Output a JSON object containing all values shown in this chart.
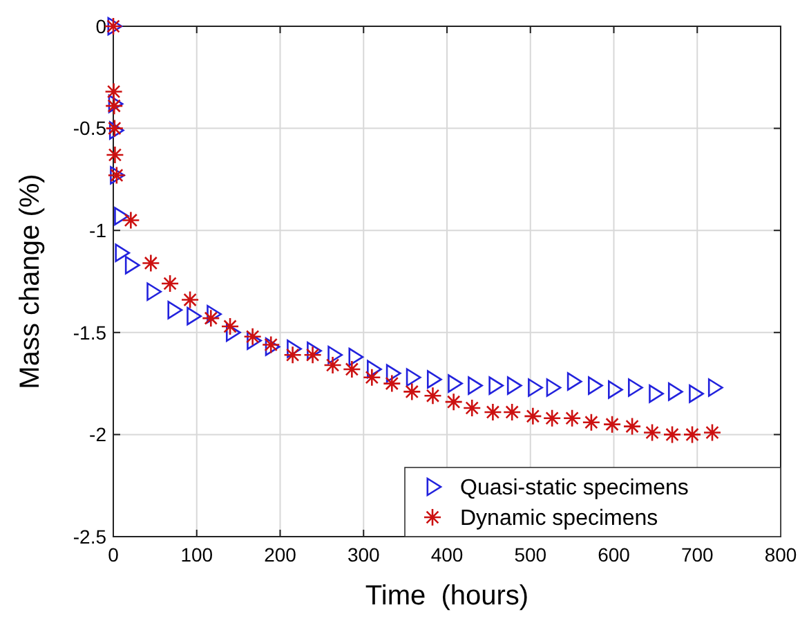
{
  "chart_data": {
    "type": "scatter",
    "xlabel": "Time  (hours)",
    "ylabel": "Mass change (%)",
    "xlim": [
      0,
      800
    ],
    "xticks": [
      0,
      100,
      200,
      300,
      400,
      500,
      600,
      700,
      800
    ],
    "ylim": [
      -2.5,
      0
    ],
    "yticks": [
      -2.5,
      -2,
      -1.5,
      -1,
      -0.5,
      0
    ],
    "grid": true,
    "legend": "bottom right",
    "series": [
      {
        "name": "Quasi-static specimens",
        "color": "#2222dd",
        "marker": "triangle",
        "x": [
          0,
          1,
          2,
          3,
          8,
          9,
          21,
          47,
          72,
          95,
          119,
          142,
          167,
          189,
          215,
          239,
          264,
          289,
          311,
          334,
          358,
          383,
          408,
          432,
          457,
          479,
          504,
          526,
          551,
          576,
          600,
          624,
          649,
          672,
          697,
          720
        ],
        "values": [
          0,
          -0.38,
          -0.51,
          -0.73,
          -0.93,
          -1.11,
          -1.17,
          -1.3,
          -1.39,
          -1.42,
          -1.41,
          -1.5,
          -1.54,
          -1.57,
          -1.58,
          -1.59,
          -1.61,
          -1.62,
          -1.68,
          -1.7,
          -1.72,
          -1.73,
          -1.75,
          -1.76,
          -1.76,
          -1.76,
          -1.77,
          -1.77,
          -1.74,
          -1.76,
          -1.78,
          -1.77,
          -1.8,
          -1.79,
          -1.8,
          -1.77
        ]
      },
      {
        "name": "Dynamic specimens",
        "color": "#cc1111",
        "marker": "cross",
        "x": [
          0,
          0.5,
          1,
          1.5,
          2,
          4,
          21,
          45,
          68,
          92,
          117,
          140,
          167,
          189,
          215,
          239,
          263,
          286,
          310,
          334,
          358,
          383,
          408,
          430,
          455,
          478,
          503,
          526,
          550,
          573,
          598,
          622,
          646,
          670,
          694,
          718
        ],
        "values": [
          0,
          -0.32,
          -0.39,
          -0.5,
          -0.63,
          -0.73,
          -0.95,
          -1.16,
          -1.26,
          -1.34,
          -1.43,
          -1.47,
          -1.52,
          -1.56,
          -1.61,
          -1.61,
          -1.66,
          -1.68,
          -1.72,
          -1.75,
          -1.79,
          -1.81,
          -1.84,
          -1.87,
          -1.89,
          -1.89,
          -1.91,
          -1.92,
          -1.92,
          -1.94,
          -1.95,
          -1.96,
          -1.99,
          -2,
          -2,
          -1.99
        ]
      }
    ]
  }
}
